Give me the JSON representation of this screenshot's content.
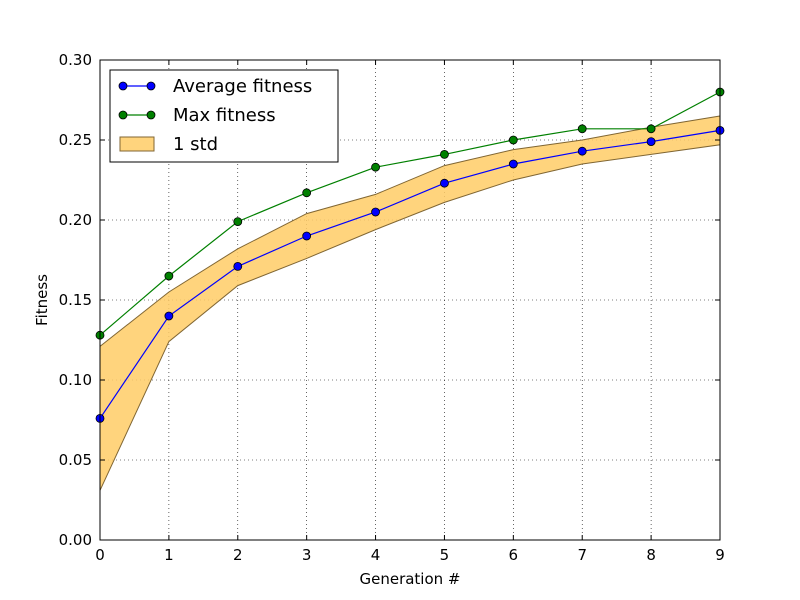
{
  "chart_data": {
    "type": "line",
    "xlabel": "Generation #",
    "ylabel": "Fitness",
    "x": [
      0,
      1,
      2,
      3,
      4,
      5,
      6,
      7,
      8,
      9
    ],
    "xlim": [
      0,
      9
    ],
    "ylim": [
      0,
      0.3
    ],
    "x_ticks": [
      "0",
      "1",
      "2",
      "3",
      "4",
      "5",
      "6",
      "7",
      "8",
      "9"
    ],
    "y_ticks": [
      "0.00",
      "0.05",
      "0.10",
      "0.15",
      "0.20",
      "0.25",
      "0.30"
    ],
    "grid": true,
    "legend_placement": "top-left",
    "series": [
      {
        "name": "Average fitness",
        "values": [
          0.076,
          0.14,
          0.171,
          0.19,
          0.205,
          0.223,
          0.235,
          0.243,
          0.249,
          0.256
        ],
        "color": "#0000ff",
        "marker": "circle"
      },
      {
        "name": "Max fitness",
        "values": [
          0.128,
          0.165,
          0.199,
          0.217,
          0.233,
          0.241,
          0.25,
          0.257,
          0.257,
          0.28
        ],
        "color": "#008000",
        "marker": "circle"
      }
    ],
    "band": {
      "name": "1 std",
      "lower": [
        0.031,
        0.124,
        0.159,
        0.176,
        0.194,
        0.211,
        0.225,
        0.235,
        0.241,
        0.247
      ],
      "upper": [
        0.121,
        0.155,
        0.182,
        0.204,
        0.216,
        0.234,
        0.244,
        0.25,
        0.258,
        0.265
      ],
      "fill_color": "#ffcc66",
      "edge_color": "#806633"
    }
  }
}
